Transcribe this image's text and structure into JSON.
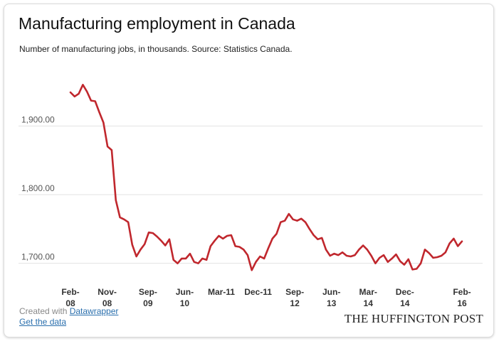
{
  "header": {
    "title": "Manufacturing employment in Canada",
    "subtitle": "Number of manufacturing jobs, in thousands. Source: Statistics Canada."
  },
  "footer": {
    "created_with": "Created with ",
    "datawrapper": "Datawrapper",
    "get_data": "Get the data",
    "brand": "THE HUFFINGTON POST"
  },
  "chart_data": {
    "type": "line",
    "title": "Manufacturing employment in Canada",
    "subtitle": "Number of manufacturing jobs, in thousands. Source: Statistics Canada.",
    "ylim": [
      1680,
      1980
    ],
    "yticks": [
      1700,
      1800,
      1900
    ],
    "ytick_labels": [
      "1,700.00",
      "1,800.00",
      "1,900.00"
    ],
    "grid": true,
    "line_color": "#c0272d",
    "x_start": "2008-02",
    "x_end": "2016-02",
    "xticks": [
      {
        "month": "2008-02",
        "line1": "Feb-",
        "line2": "08"
      },
      {
        "month": "2008-11",
        "line1": "Nov-",
        "line2": "08"
      },
      {
        "month": "2009-09",
        "line1": "Sep-",
        "line2": "09"
      },
      {
        "month": "2010-06",
        "line1": "Jun-",
        "line2": "10"
      },
      {
        "month": "2011-03",
        "line1": "Mar-11",
        "line2": ""
      },
      {
        "month": "2011-12",
        "line1": "Dec-11",
        "line2": ""
      },
      {
        "month": "2012-09",
        "line1": "Sep-",
        "line2": "12"
      },
      {
        "month": "2013-06",
        "line1": "Jun-",
        "line2": "13"
      },
      {
        "month": "2014-03",
        "line1": "Mar-",
        "line2": "14"
      },
      {
        "month": "2014-12",
        "line1": "Dec-",
        "line2": "14"
      },
      {
        "month": "2016-02",
        "line1": "Feb-",
        "line2": "16"
      }
    ],
    "series": [
      {
        "values": [
          1949,
          1943,
          1947,
          1960,
          1950,
          1937,
          1936,
          1920,
          1905,
          1870,
          1865,
          1792,
          1767,
          1764,
          1760,
          1727,
          1710,
          1720,
          1728,
          1745,
          1744,
          1739,
          1733,
          1726,
          1735,
          1705,
          1700,
          1707,
          1707,
          1714,
          1702,
          1700,
          1707,
          1705,
          1725,
          1733,
          1740,
          1736,
          1740,
          1741,
          1725,
          1724,
          1720,
          1712,
          1690,
          1702,
          1710,
          1707,
          1722,
          1736,
          1743,
          1760,
          1762,
          1772,
          1764,
          1762,
          1765,
          1760,
          1750,
          1741,
          1735,
          1737,
          1720,
          1711,
          1714,
          1712,
          1716,
          1711,
          1710,
          1712,
          1720,
          1726,
          1720,
          1711,
          1700,
          1708,
          1712,
          1702,
          1707,
          1713,
          1703,
          1698,
          1706,
          1691,
          1692,
          1700,
          1720,
          1715,
          1708,
          1709,
          1711,
          1716,
          1729,
          1736,
          1725,
          1732
        ]
      }
    ]
  }
}
